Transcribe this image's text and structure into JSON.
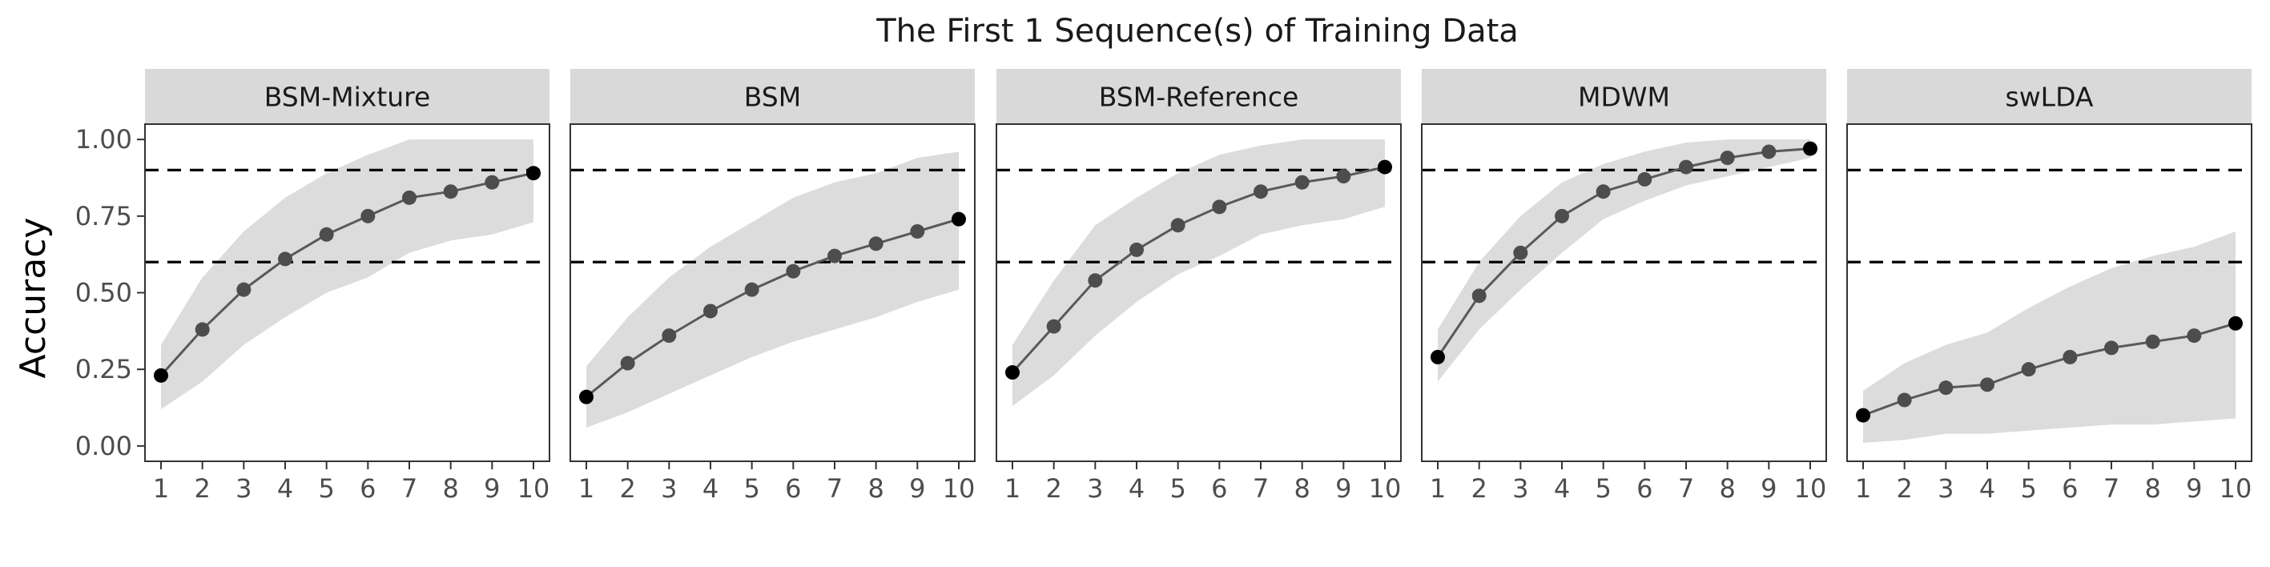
{
  "chart_data": {
    "type": "line",
    "title": "The First 1 Sequence(s) of Training Data",
    "ylabel": "Accuracy",
    "xlabel": "",
    "x": [
      1,
      2,
      3,
      4,
      5,
      6,
      7,
      8,
      9,
      10
    ],
    "ylim": [
      -0.05,
      1.05
    ],
    "y_ticks": [
      0.0,
      0.25,
      0.5,
      0.75,
      1.0
    ],
    "y_tick_labels": [
      "0.00",
      "0.25",
      "0.50",
      "0.75",
      "1.00"
    ],
    "x_tick_labels": [
      "1",
      "2",
      "3",
      "4",
      "5",
      "6",
      "7",
      "8",
      "9",
      "10"
    ],
    "reference_lines": [
      0.9,
      0.6
    ],
    "colors": {
      "line": "#595959",
      "point": "#4d4d4d",
      "first_last_point": "#000000",
      "band": "#dcdcdc",
      "strip": "#d9d9d9",
      "reference_line": "#000000"
    },
    "panels": [
      {
        "name": "BSM-Mixture",
        "values": [
          0.23,
          0.38,
          0.51,
          0.61,
          0.69,
          0.75,
          0.81,
          0.83,
          0.86,
          0.89
        ],
        "lower": [
          0.12,
          0.21,
          0.33,
          0.42,
          0.5,
          0.55,
          0.63,
          0.67,
          0.69,
          0.73
        ],
        "upper": [
          0.33,
          0.55,
          0.7,
          0.81,
          0.89,
          0.95,
          1.0,
          1.0,
          1.0,
          1.0
        ]
      },
      {
        "name": "BSM",
        "values": [
          0.16,
          0.27,
          0.36,
          0.44,
          0.51,
          0.57,
          0.62,
          0.66,
          0.7,
          0.74
        ],
        "lower": [
          0.06,
          0.11,
          0.17,
          0.23,
          0.29,
          0.34,
          0.38,
          0.42,
          0.47,
          0.51
        ],
        "upper": [
          0.26,
          0.42,
          0.55,
          0.65,
          0.73,
          0.81,
          0.86,
          0.89,
          0.94,
          0.96
        ]
      },
      {
        "name": "BSM-Reference",
        "values": [
          0.24,
          0.39,
          0.54,
          0.64,
          0.72,
          0.78,
          0.83,
          0.86,
          0.88,
          0.91
        ],
        "lower": [
          0.13,
          0.23,
          0.36,
          0.47,
          0.56,
          0.62,
          0.69,
          0.72,
          0.74,
          0.78
        ],
        "upper": [
          0.33,
          0.54,
          0.72,
          0.81,
          0.89,
          0.95,
          0.98,
          1.0,
          1.0,
          1.0
        ]
      },
      {
        "name": "MDWM",
        "values": [
          0.29,
          0.49,
          0.63,
          0.75,
          0.83,
          0.87,
          0.91,
          0.94,
          0.96,
          0.97
        ],
        "lower": [
          0.21,
          0.38,
          0.51,
          0.63,
          0.74,
          0.8,
          0.85,
          0.88,
          0.91,
          0.94
        ],
        "upper": [
          0.38,
          0.6,
          0.75,
          0.86,
          0.92,
          0.96,
          0.99,
          1.0,
          1.0,
          1.0
        ]
      },
      {
        "name": "swLDA",
        "values": [
          0.1,
          0.15,
          0.19,
          0.2,
          0.25,
          0.29,
          0.32,
          0.34,
          0.36,
          0.4
        ],
        "lower": [
          0.01,
          0.02,
          0.04,
          0.04,
          0.05,
          0.06,
          0.07,
          0.07,
          0.08,
          0.09
        ],
        "upper": [
          0.18,
          0.27,
          0.33,
          0.37,
          0.45,
          0.52,
          0.58,
          0.62,
          0.65,
          0.7
        ]
      }
    ]
  }
}
